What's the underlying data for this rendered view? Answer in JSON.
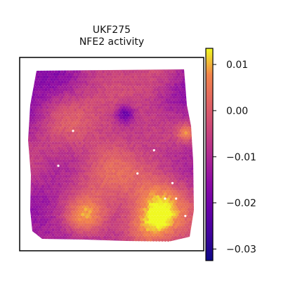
{
  "chart_data": {
    "type": "heatmap",
    "title_lines": [
      "UKF275",
      "NFE2 activity"
    ],
    "colormap": "plasma",
    "colorbar": {
      "range": [
        -0.0325,
        0.0135
      ],
      "ticks": [
        0.01,
        0.0,
        -0.01,
        -0.02,
        -0.03
      ],
      "tick_labels": [
        "0.01",
        "0.00",
        "−0.01",
        "−0.02",
        "−0.03"
      ]
    },
    "spatial_axes_ticks": false,
    "value_range_shown": [
      -0.032,
      0.013
    ],
    "highlighted_spots": [
      {
        "x": 0.29,
        "y": 0.38
      },
      {
        "x": 0.73,
        "y": 0.48
      },
      {
        "x": 0.21,
        "y": 0.56
      },
      {
        "x": 0.64,
        "y": 0.6
      },
      {
        "x": 0.83,
        "y": 0.65
      },
      {
        "x": 0.79,
        "y": 0.73
      },
      {
        "x": 0.85,
        "y": 0.73
      },
      {
        "x": 0.9,
        "y": 0.82
      }
    ]
  }
}
